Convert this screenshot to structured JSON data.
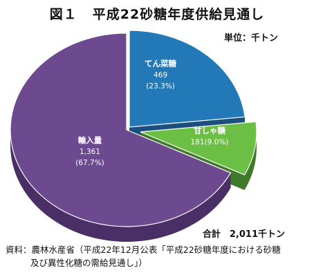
{
  "header": {
    "fig_no": "図１",
    "title": "平成22砂糖年度供給見通し",
    "unit": "単位：千トン"
  },
  "footer": {
    "total": "合計　2,011千トン",
    "source_line1": "資料：農林水産省（平成22年12月公表「平成22砂糖年度における砂糖",
    "source_line2": "及び異性化糖の需給見通し」）"
  },
  "chart_data": {
    "type": "pie",
    "unit": "千トン",
    "total": 2011,
    "slices": [
      {
        "name": "てん菜糖",
        "value": 469,
        "value_label": "469",
        "pct_label": "(23.3%)",
        "color": "#2378b8",
        "side": "#1a4f80"
      },
      {
        "name": "甘しゃ糖",
        "value": 181,
        "value_label": "181(9.0%)",
        "pct_label": "",
        "color": "#6cbf45",
        "side": "#3e7a2a"
      },
      {
        "name": "輸入量",
        "value": 1361,
        "value_label": "1,361",
        "pct_label": "(67.7%)",
        "color": "#6d4a8f",
        "side": "#4a2f66"
      }
    ]
  }
}
